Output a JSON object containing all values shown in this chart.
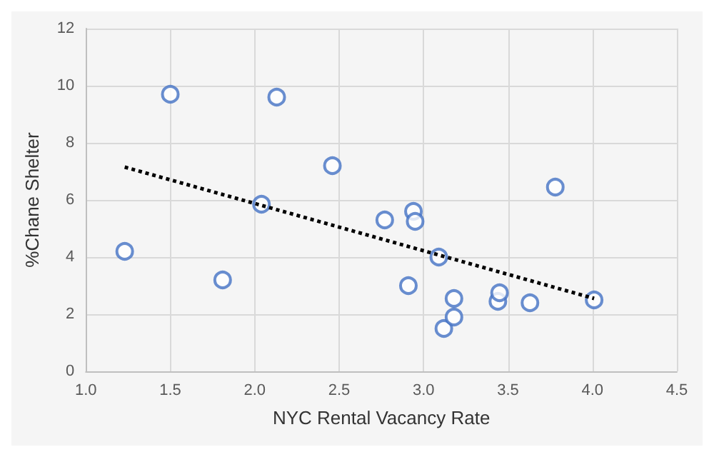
{
  "chart_data": {
    "type": "scatter",
    "xlabel": "NYC Rental Vacancy Rate",
    "ylabel": "%Chane Shelter",
    "xlim": [
      1.0,
      4.5
    ],
    "xticks": [
      {
        "value": 1,
        "label": "1.0"
      },
      {
        "value": 1.5,
        "label": "1.5"
      },
      {
        "value": 2,
        "label": "2.0"
      },
      {
        "value": 2.5,
        "label": "2.5"
      },
      {
        "value": 3,
        "label": "3.0"
      },
      {
        "value": 3.5,
        "label": "3.5"
      },
      {
        "value": 4,
        "label": "4.0"
      },
      {
        "value": 4.5,
        "label": "4.5"
      }
    ],
    "ylim": [
      0,
      12
    ],
    "yticks": [
      0,
      2,
      4,
      6,
      8,
      10,
      12
    ],
    "grid": true,
    "series": [
      {
        "color": "#4472c4",
        "marker": "circle",
        "x": [
          1.23,
          1.5,
          1.81,
          2.04,
          2.13,
          2.46,
          2.77,
          2.91,
          2.94,
          2.95,
          3.09,
          3.12,
          3.18,
          3.18,
          3.44,
          3.45,
          3.63,
          3.78,
          4.01
        ],
        "values": [
          4.2,
          9.7,
          3.2,
          5.85,
          9.6,
          7.2,
          5.3,
          3.0,
          5.6,
          5.25,
          4.0,
          1.5,
          1.9,
          2.55,
          2.45,
          2.75,
          2.4,
          6.45,
          2.5
        ]
      },
      {
        "type": "line",
        "color": "#000000",
        "line_style": "dotted",
        "marker": "none",
        "x": [
          1.23,
          4.01
        ],
        "values": [
          7.15,
          2.55
        ]
      }
    ]
  }
}
